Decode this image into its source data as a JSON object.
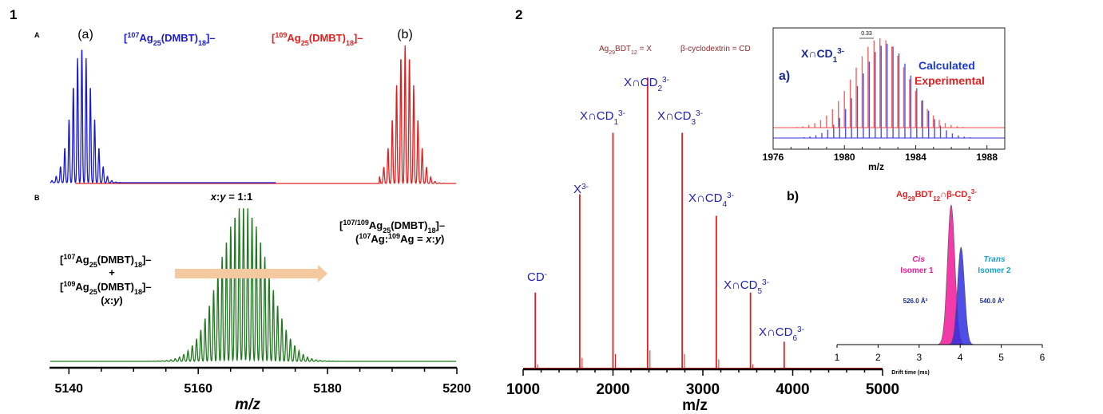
{
  "panels": {
    "p1": "1",
    "p2": "2",
    "p1a": "A",
    "p1b": "B"
  },
  "colors": {
    "blue": "#1a1ad0",
    "red": "#e02020",
    "green": "#1f7a1f",
    "darkred": "#8b2a2a",
    "navy": "#1a2a8c",
    "arrow": "#f5c9a0",
    "pink": "#f0189a",
    "violet": "#3030e0",
    "teal": "#1aa0c8"
  },
  "chart_data": [
    {
      "type": "line",
      "panel": "1A",
      "xlim": [
        5137,
        5200
      ],
      "series": [
        {
          "label": "(a)",
          "formula": "[107Ag25(DMBT)18]–",
          "center": 5142,
          "color": "#1a1ad0"
        },
        {
          "label": "(b)",
          "formula": "[109Ag25(DMBT)18]–",
          "center": 5192,
          "color": "#e02020"
        }
      ]
    },
    {
      "type": "line",
      "panel": "1B",
      "center": 5167,
      "annotation_ratio": "x:y = 1:1",
      "product": "[107/109Ag25(DMBT)18]–",
      "product_note": "(107Ag:109Ag = x:y)",
      "reactant_1": "[107Ag25(DMBT)18]–",
      "plus": "+",
      "reactant_2": "[109Ag25(DMBT)18]–",
      "reactant_ratio": "(x:y)",
      "xlabel": "m/z",
      "xlim": [
        5137,
        5200
      ],
      "xticks": [
        5140,
        5160,
        5180,
        5200
      ]
    },
    {
      "type": "bar",
      "panel": "2",
      "legend_x": "Ag29BDT12 = X",
      "legend_cd": "β-cyclodextrin = CD",
      "xlabel": "m/z",
      "xlim": [
        1000,
        5000
      ],
      "ylim": [
        0,
        100
      ],
      "xticks": [
        1000,
        2000,
        3000,
        4000,
        5000
      ],
      "peaks": [
        {
          "label": "CD-",
          "x": 1135,
          "value": 25
        },
        {
          "label": "X3-",
          "x": 1630,
          "value": 57
        },
        {
          "label": "X∩CD1 3-",
          "x": 2000,
          "value": 77
        },
        {
          "label": "X∩CD2 3-",
          "x": 2385,
          "value": 95
        },
        {
          "label": "X∩CD3 3-",
          "x": 2770,
          "value": 77
        },
        {
          "label": "X∩CD4 3-",
          "x": 3150,
          "value": 50
        },
        {
          "label": "X∩CD5 3-",
          "x": 3530,
          "value": 25
        },
        {
          "label": "X∩CD6 3-",
          "x": 3905,
          "value": 9
        }
      ]
    },
    {
      "type": "line",
      "panel": "2a",
      "label": "a)",
      "species": "X∩CD1 3-",
      "spacing_label": "0.33",
      "legend": [
        "Calculated",
        "Experimental"
      ],
      "xlabel": "m/z",
      "xlim": [
        1976,
        1989
      ],
      "xticks": [
        1976,
        1980,
        1984,
        1988
      ],
      "series": [
        {
          "name": "Calculated",
          "center": 1982.3,
          "color": "#3030e0"
        },
        {
          "name": "Experimental",
          "center": 1982.0,
          "color": "#e02020"
        }
      ]
    },
    {
      "type": "area",
      "panel": "2b",
      "label": "b)",
      "title": "Ag29BDT12∩β-CD2 3-",
      "xlabel": "Drift time (ms)",
      "xlim": [
        1,
        6
      ],
      "xticks": [
        1,
        2,
        3,
        4,
        5,
        6
      ],
      "series": [
        {
          "name": "Cis",
          "isomer": "Isomer 1",
          "ccs": "526.0 Å²",
          "center": 3.78,
          "color": "#f0189a"
        },
        {
          "name": "Trans",
          "isomer": "Isomer 2",
          "ccs": "540.0 Å²",
          "center": 4.02,
          "color": "#3030e0"
        }
      ]
    }
  ]
}
